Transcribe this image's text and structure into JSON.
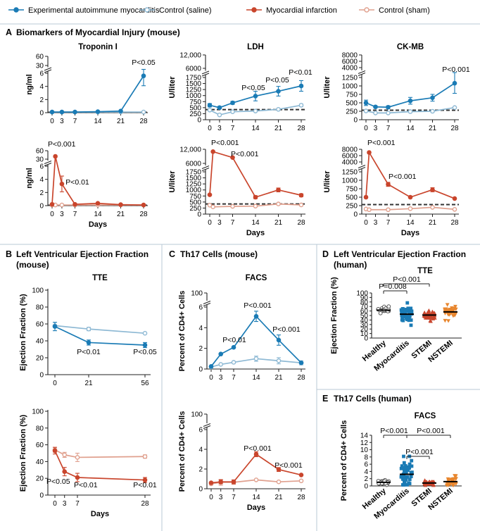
{
  "legend": {
    "items": [
      {
        "label": "Experimental autoimmune myocarditis",
        "color": "#1a7bb5",
        "filled": true
      },
      {
        "label": "Control (saline)",
        "color": "#8eb9d4",
        "filled": false
      },
      {
        "label": "Myocardial infarction",
        "color": "#c9452c",
        "filled": true
      },
      {
        "label": "Control (sham)",
        "color": "#e0a08e",
        "filled": false
      }
    ]
  },
  "panels": {
    "A": {
      "letter": "A",
      "title": "Biomarkers of Myocardial Injury (mouse)"
    },
    "B": {
      "letter": "B",
      "title": "Left Ventricular Ejection Fraction",
      "subtitle": "(mouse)"
    },
    "C": {
      "letter": "C",
      "title": "Th17 Cells (mouse)"
    },
    "D": {
      "letter": "D",
      "title": "Left Ventricular Ejection Fraction",
      "subtitle": "(human)"
    },
    "E": {
      "letter": "E",
      "title": "Th17 Cells (human)"
    }
  },
  "colors": {
    "blue": "#1a7bb5",
    "lightblue": "#8eb9d4",
    "red": "#c9452c",
    "pink": "#e0a08e",
    "orange": "#e8862e",
    "grey": "#555555",
    "axis": "#222222"
  },
  "chart_data": [
    {
      "id": "a-trop-eam",
      "type": "line",
      "title": "Troponin I",
      "xlabel": "",
      "ylabel": "ng/ml",
      "x": [
        0,
        3,
        7,
        14,
        21,
        28
      ],
      "xticks": [
        "0",
        "3",
        "7",
        "14",
        "21",
        "28"
      ],
      "yticks_low": [
        "0",
        "2",
        "4",
        "6"
      ],
      "yticks_high": [
        "30",
        "60"
      ],
      "series": [
        {
          "name": "Control (saline)",
          "values": [
            0.1,
            0.1,
            0.1,
            0.1,
            0.1,
            0.1
          ],
          "errors": [
            0,
            0,
            0,
            0,
            0,
            0
          ]
        },
        {
          "name": "Experimental autoimmune myocarditis",
          "values": [
            0.1,
            0.1,
            0.1,
            0.15,
            0.25,
            5.6
          ],
          "errors": [
            0,
            0,
            0,
            0,
            0,
            1.5
          ]
        }
      ],
      "reference_line": 0.05,
      "annotations": [
        {
          "text": "P<0.05",
          "at": 28
        }
      ]
    },
    {
      "id": "a-ldh-eam",
      "type": "line",
      "title": "LDH",
      "xlabel": "",
      "ylabel": "U/liter",
      "x": [
        0,
        3,
        7,
        14,
        21,
        28
      ],
      "xticks": [
        "0",
        "3",
        "7",
        "14",
        "21",
        "28"
      ],
      "yticks_low": [
        "0",
        "250",
        "500",
        "750",
        "1000",
        "1250",
        "1500",
        "1750"
      ],
      "yticks_high": [
        "6000",
        "12,000"
      ],
      "series": [
        {
          "name": "Control (saline)",
          "values": [
            400,
            200,
            330,
            360,
            430,
            600
          ],
          "errors": [
            0,
            0,
            0,
            0,
            0,
            50
          ]
        },
        {
          "name": "Experimental autoimmune myocarditis",
          "values": [
            600,
            500,
            700,
            980,
            1180,
            1400
          ],
          "errors": [
            70,
            50,
            60,
            200,
            200,
            220
          ]
        }
      ],
      "reference_line": 420,
      "annotations": [
        {
          "text": "P<0.05",
          "at": 14
        },
        {
          "text": "P<0.05",
          "at": 21
        },
        {
          "text": "P<0.01",
          "at": 28
        }
      ]
    },
    {
      "id": "a-ckmb-eam",
      "type": "line",
      "title": "CK-MB",
      "xlabel": "",
      "ylabel": "U/liter",
      "x": [
        0,
        3,
        7,
        14,
        21,
        28
      ],
      "xticks": [
        "0",
        "3",
        "7",
        "14",
        "21",
        "28"
      ],
      "yticks_low": [
        "0",
        "250",
        "500",
        "750",
        "1000",
        "1250"
      ],
      "yticks_high": [
        "4000",
        "6000",
        "8000"
      ],
      "series": [
        {
          "name": "Control (saline)",
          "values": [
            260,
            200,
            200,
            240,
            250,
            360
          ],
          "errors": [
            0,
            0,
            0,
            0,
            0,
            0
          ]
        },
        {
          "name": "Experimental autoimmune myocarditis",
          "values": [
            500,
            380,
            370,
            560,
            650,
            1080
          ],
          "errors": [
            80,
            30,
            40,
            100,
            100,
            300
          ]
        }
      ],
      "reference_line": 280,
      "annotations": [
        {
          "text": "P<0.001",
          "at": 28
        }
      ]
    },
    {
      "id": "a-trop-mi",
      "type": "line",
      "title": "",
      "xlabel": "Days",
      "ylabel": "ng/ml",
      "x": [
        0,
        1,
        3,
        7,
        14,
        21,
        28
      ],
      "xticks": [
        "0",
        "3",
        "7",
        "14",
        "21",
        "28"
      ],
      "yticks_low": [
        "0",
        "2",
        "4",
        "6"
      ],
      "yticks_high": [
        "30",
        "60"
      ],
      "series": [
        {
          "name": "Control (sham)",
          "values": [
            0.1,
            0.1,
            0.1,
            0.1,
            0.1,
            0.1,
            0.1
          ],
          "errors": [
            0,
            0,
            0,
            0,
            0,
            0,
            0
          ]
        },
        {
          "name": "Myocardial infarction",
          "values": [
            0.2,
            40,
            3.3,
            0.2,
            0.35,
            0.15,
            0.1
          ],
          "errors": [
            0,
            0,
            1.2,
            0,
            0,
            0,
            0
          ]
        }
      ],
      "reference_line": 0.05,
      "annotations": [
        {
          "text": "P<0.001",
          "at": 1
        },
        {
          "text": "P<0.01",
          "at": 3
        }
      ]
    },
    {
      "id": "a-ldh-mi",
      "type": "line",
      "title": "",
      "xlabel": "Days",
      "ylabel": "U/liter",
      "x": [
        0,
        1,
        7,
        14,
        21,
        28
      ],
      "xticks": [
        "0",
        "3",
        "7",
        "14",
        "21",
        "28"
      ],
      "yticks_low": [
        "0",
        "250",
        "500",
        "750",
        "1000",
        "1250",
        "1500",
        "1750"
      ],
      "yticks_high": [
        "6000",
        "12,000"
      ],
      "series": [
        {
          "name": "Control (sham)",
          "values": [
            370,
            300,
            320,
            330,
            420,
            380
          ],
          "errors": [
            0,
            0,
            0,
            0,
            0,
            0
          ]
        },
        {
          "name": "Myocardial infarction",
          "values": [
            800,
            11000,
            8500,
            700,
            1000,
            780
          ],
          "errors": [
            0,
            0,
            0,
            60,
            80,
            60
          ]
        }
      ],
      "reference_line": 420,
      "annotations": [
        {
          "text": "P<0.001",
          "at": 1
        },
        {
          "text": "P<0.001",
          "at": 7
        }
      ]
    },
    {
      "id": "a-ckmb-mi",
      "type": "line",
      "title": "",
      "xlabel": "Days",
      "ylabel": "U/liter",
      "x": [
        0,
        1,
        7,
        14,
        21,
        28
      ],
      "xticks": [
        "0",
        "3",
        "7",
        "14",
        "21",
        "28"
      ],
      "yticks_low": [
        "0",
        "250",
        "500",
        "750",
        "1000",
        "1250"
      ],
      "yticks_high": [
        "4000",
        "6000",
        "8000"
      ],
      "series": [
        {
          "name": "Control (sham)",
          "values": [
            150,
            130,
            130,
            160,
            200,
            140
          ],
          "errors": [
            0,
            0,
            0,
            0,
            0,
            0
          ]
        },
        {
          "name": "Myocardial infarction",
          "values": [
            500,
            7000,
            880,
            500,
            720,
            460
          ],
          "errors": [
            0,
            0,
            60,
            0,
            60,
            0
          ]
        }
      ],
      "reference_line": 280,
      "annotations": [
        {
          "text": "P<0.001",
          "at": 1
        },
        {
          "text": "P<0.001",
          "at": 7
        }
      ]
    },
    {
      "id": "b-eam",
      "type": "line",
      "title": "TTE",
      "xlabel": "",
      "ylabel": "Ejection Fraction (%)",
      "x": [
        0,
        21,
        56
      ],
      "xticks": [
        "0",
        "21",
        "56"
      ],
      "ylim": [
        0,
        100
      ],
      "yticks": [
        "0",
        "20",
        "40",
        "60",
        "80",
        "100"
      ],
      "series": [
        {
          "name": "Control (saline)",
          "values": [
            58,
            54,
            49
          ],
          "errors": [
            0,
            2,
            0
          ]
        },
        {
          "name": "Experimental autoimmune myocarditis",
          "values": [
            57,
            38,
            35
          ],
          "errors": [
            5,
            3,
            3
          ]
        }
      ],
      "annotations": [
        {
          "text": "P<0.01",
          "at": 21
        },
        {
          "text": "P<0.05",
          "at": 56
        }
      ]
    },
    {
      "id": "b-mi",
      "type": "line",
      "title": "",
      "xlabel": "Days",
      "ylabel": "Ejection Fraction (%)",
      "x": [
        0,
        3,
        7,
        28
      ],
      "xticks": [
        "0",
        "3",
        "7",
        "28"
      ],
      "ylim": [
        0,
        100
      ],
      "yticks": [
        "0",
        "20",
        "40",
        "60",
        "80",
        "100"
      ],
      "series": [
        {
          "name": "Control (sham)",
          "values": [
            54,
            48,
            45,
            46
          ],
          "errors": [
            3,
            3,
            5,
            2
          ]
        },
        {
          "name": "Myocardial infarction",
          "values": [
            53,
            28,
            21,
            18
          ],
          "errors": [
            4,
            5,
            5,
            3
          ]
        }
      ],
      "annotations": [
        {
          "text": "P<0.05",
          "at": 3
        },
        {
          "text": "P<0.01",
          "at": 7
        },
        {
          "text": "P<0.01",
          "at": 28
        }
      ]
    },
    {
      "id": "c-eam",
      "type": "line",
      "title": "FACS",
      "xlabel": "",
      "ylabel": "Percent of CD4+ Cells",
      "x": [
        0,
        3,
        7,
        14,
        21,
        28
      ],
      "xticks": [
        "0",
        "3",
        "7",
        "14",
        "21",
        "28"
      ],
      "yticks_low": [
        "0",
        "2",
        "4",
        "6"
      ],
      "yticks_high": [
        "100"
      ],
      "series": [
        {
          "name": "Control (saline)",
          "values": [
            0.2,
            0.45,
            0.65,
            1.0,
            0.8,
            0.6
          ],
          "errors": [
            0,
            0,
            0,
            0.25,
            0.3,
            0.2
          ]
        },
        {
          "name": "Experimental autoimmune myocarditis",
          "values": [
            0.25,
            1.45,
            2.1,
            5.1,
            2.8,
            0.6
          ],
          "errors": [
            0,
            0,
            0,
            0.5,
            0.5,
            0
          ]
        }
      ],
      "annotations": [
        {
          "text": "P<0.01",
          "at": 3
        },
        {
          "text": "P<0.001",
          "at": 14
        },
        {
          "text": "P<0.001",
          "at": 21
        }
      ]
    },
    {
      "id": "c-mi",
      "type": "line",
      "title": "",
      "xlabel": "Days",
      "ylabel": "Percent of CD4+ Cells",
      "x": [
        0,
        3,
        7,
        14,
        21,
        28
      ],
      "xticks": [
        "0",
        "3",
        "7",
        "14",
        "21",
        "28"
      ],
      "yticks_low": [
        "0",
        "2",
        "4",
        "6"
      ],
      "yticks_high": [
        "100"
      ],
      "series": [
        {
          "name": "Control (sham)",
          "values": [
            0.5,
            0.65,
            0.65,
            0.9,
            0.7,
            0.8
          ],
          "errors": [
            0,
            0.3,
            0.2,
            0,
            0,
            0
          ]
        },
        {
          "name": "Myocardial infarction",
          "values": [
            0.6,
            0.7,
            0.7,
            3.5,
            1.95,
            1.4
          ],
          "errors": [
            0,
            0.2,
            0.2,
            0.25,
            0.2,
            0
          ]
        }
      ],
      "annotations": [
        {
          "text": "P<0.001",
          "at": 14
        },
        {
          "text": "P<0.001",
          "at": 21
        }
      ]
    },
    {
      "id": "d-human",
      "type": "scatter",
      "title": "TTE",
      "xlabel": "",
      "ylabel": "Ejection Fraction (%)",
      "ylim": [
        0,
        100
      ],
      "yticks": [
        "0",
        "10",
        "20",
        "30",
        "40",
        "50",
        "60",
        "70",
        "80",
        "90",
        "100"
      ],
      "categories": [
        "Healthy",
        "Myocarditis",
        "STEMI",
        "NSTEMI"
      ],
      "means": [
        62,
        53,
        51,
        58
      ],
      "ranges": [
        [
          52,
          70
        ],
        [
          15,
          78
        ],
        [
          32,
          66
        ],
        [
          35,
          75
        ]
      ],
      "comparisons": [
        {
          "text": "P=0.008",
          "from": "Healthy",
          "to": "Myocarditis"
        },
        {
          "text": "P<0.001",
          "from": "Healthy",
          "to": "STEMI"
        }
      ]
    },
    {
      "id": "e-human",
      "type": "scatter",
      "title": "FACS",
      "xlabel": "",
      "ylabel": "Percent of CD4+ Cells",
      "ylim": [
        0,
        14
      ],
      "yticks": [
        "0",
        "2",
        "4",
        "6",
        "8",
        "10",
        "12",
        "14"
      ],
      "categories": [
        "Healthy",
        "Myocarditis",
        "STEMI",
        "NSTEMI"
      ],
      "means": [
        1.0,
        3.2,
        0.8,
        1.2
      ],
      "ranges": [
        [
          0.3,
          2.2
        ],
        [
          0.3,
          12.8
        ],
        [
          0.2,
          2.2
        ],
        [
          0.2,
          3.8
        ]
      ],
      "comparisons": [
        {
          "text": "P<0.001",
          "from": "Healthy",
          "to": "Myocarditis"
        },
        {
          "text": "P<0.001",
          "from": "Myocarditis",
          "to": "NSTEMI"
        },
        {
          "text": "P<0.001",
          "from": "Myocarditis",
          "to": "STEMI"
        }
      ]
    }
  ]
}
